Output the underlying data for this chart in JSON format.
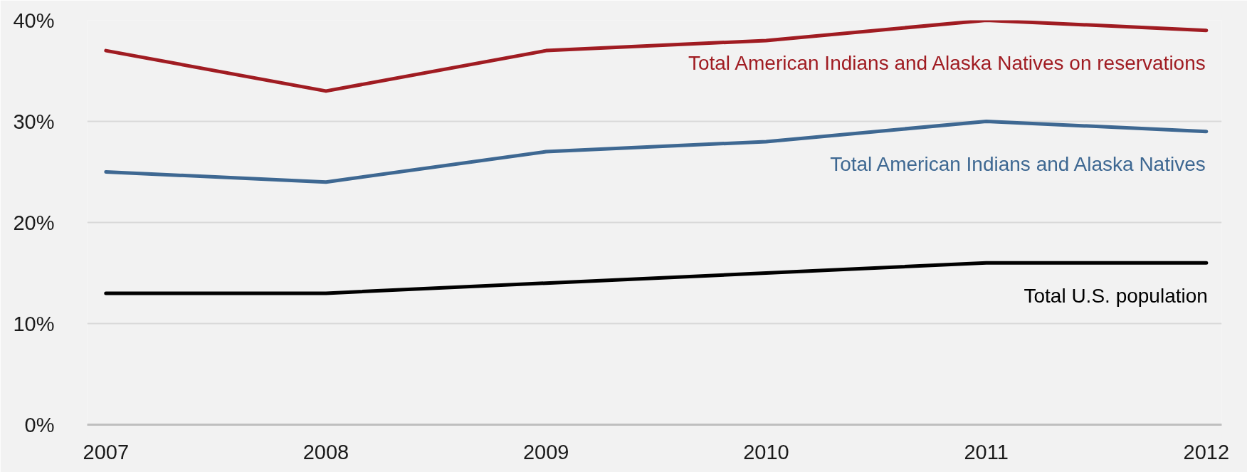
{
  "chart_data": {
    "type": "line",
    "categories": [
      "2007",
      "2008",
      "2009",
      "2010",
      "2011",
      "2012"
    ],
    "series": [
      {
        "name": "Total American Indians and Alaska Natives on reservations",
        "color": "#a01c22",
        "values": [
          37,
          33,
          37,
          38,
          40,
          39
        ]
      },
      {
        "name": "Total American Indians and Alaska Natives",
        "color": "#3e6892",
        "values": [
          25,
          24,
          27,
          28,
          30,
          29
        ]
      },
      {
        "name": "Total U.S. population",
        "color": "#000000",
        "values": [
          13,
          13,
          14,
          15,
          16,
          16
        ]
      }
    ],
    "ylim": [
      0,
      40
    ],
    "yticks": [
      {
        "value": 0,
        "label": "0%"
      },
      {
        "value": 10,
        "label": "10%"
      },
      {
        "value": 20,
        "label": "20%"
      },
      {
        "value": 30,
        "label": "30%"
      },
      {
        "value": 40,
        "label": "40%"
      }
    ],
    "grid": "y",
    "line_style": "solid"
  }
}
